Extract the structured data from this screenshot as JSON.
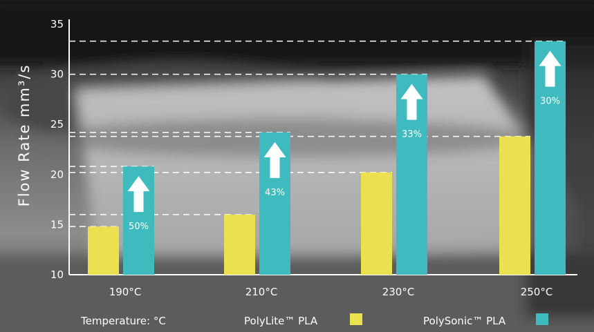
{
  "chart_data": {
    "type": "bar",
    "categories": [
      "190°C",
      "210°C",
      "230°C",
      "250°C"
    ],
    "series": [
      {
        "name": "PolyLite™ PLA",
        "values": [
          14.8,
          16.0,
          20.2,
          23.8
        ],
        "color": "#ebe050"
      },
      {
        "name": "PolySonic™ PLA",
        "values": [
          20.8,
          24.2,
          30.0,
          33.3
        ],
        "color": "#3fbbc0"
      }
    ],
    "annotations": [
      "50%",
      "43%",
      "33%",
      "30%"
    ],
    "ylabel": "Flow Rate mm³/s",
    "xlabel": "Temperature: °C",
    "ylim": [
      10,
      35
    ],
    "yticks": [
      10,
      15,
      20,
      25,
      30,
      35
    ],
    "grid": "dashed reference lines",
    "legend": "bottom"
  }
}
